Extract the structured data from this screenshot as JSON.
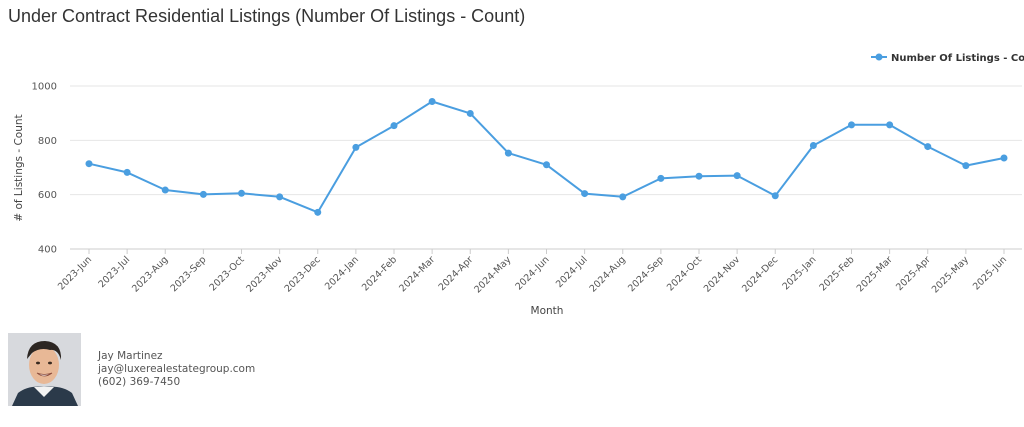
{
  "page": {
    "title": "Under Contract Residential Listings (Number Of Listings - Count)"
  },
  "chart_data": {
    "type": "line",
    "title": "Under Contract Residential Listings (Number Of Listings - Count)",
    "xlabel": "Month",
    "ylabel": "# of Listings - Count",
    "ylim": [
      400,
      1000
    ],
    "yticks": [
      400,
      600,
      800,
      1000
    ],
    "grid": true,
    "legend_position": "top-right",
    "categories": [
      "2023-Jun",
      "2023-Jul",
      "2023-Aug",
      "2023-Sep",
      "2023-Oct",
      "2023-Nov",
      "2023-Dec",
      "2024-Jan",
      "2024-Feb",
      "2024-Mar",
      "2024-Apr",
      "2024-May",
      "2024-Jun",
      "2024-Jul",
      "2024-Aug",
      "2024-Sep",
      "2024-Oct",
      "2024-Nov",
      "2024-Dec",
      "2025-Jan",
      "2025-Feb",
      "2025-Mar",
      "2025-Apr",
      "2025-May",
      "2025-Jun"
    ],
    "series": [
      {
        "name": "Number Of Listings - Count",
        "color": "#4a9ee0",
        "values": [
          714,
          682,
          617,
          601,
          605,
          592,
          535,
          774,
          854,
          943,
          899,
          753,
          710,
          604,
          592,
          660,
          668,
          670,
          596,
          781,
          857,
          857,
          777,
          707,
          735
        ]
      }
    ]
  },
  "agent": {
    "name": "Jay Martinez",
    "email": "jay@luxerealestategroup.com",
    "phone": "(602) 369-7450"
  }
}
